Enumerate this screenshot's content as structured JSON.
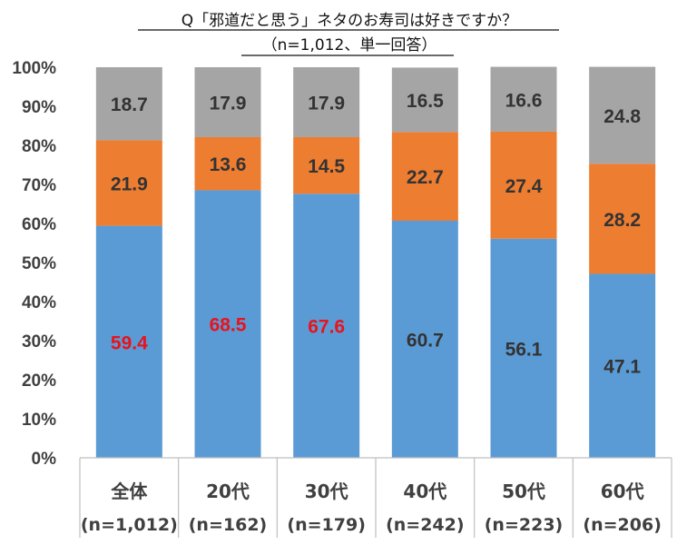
{
  "chart_data": {
    "type": "bar",
    "stacked": true,
    "title": "Q「邪道だと思う」ネタのお寿司は好きですか？",
    "subtitle": "（n=1,012、単一回答）",
    "categories": [
      "全体",
      "20代",
      "30代",
      "40代",
      "50代",
      "60代"
    ],
    "sample_sizes": [
      "(n=1,012)",
      "(n=162)",
      "(n=179)",
      "(n=242)",
      "(n=223)",
      "(n=206)"
    ],
    "series": [
      {
        "values": [
          59.4,
          68.5,
          67.6,
          60.7,
          56.1,
          47.1
        ],
        "color": "#5B9BD5",
        "label_colors": [
          "#E8131C",
          "#E8131C",
          "#E8131C",
          "#333333",
          "#333333",
          "#333333"
        ]
      },
      {
        "values": [
          21.9,
          13.6,
          14.5,
          22.7,
          27.4,
          28.2
        ],
        "color": "#ED7D31",
        "label_colors": [
          "#333333",
          "#333333",
          "#333333",
          "#333333",
          "#333333",
          "#333333"
        ]
      },
      {
        "values": [
          18.7,
          17.9,
          17.9,
          16.5,
          16.6,
          24.8
        ],
        "color": "#A5A5A5",
        "label_colors": [
          "#333333",
          "#333333",
          "#333333",
          "#333333",
          "#333333",
          "#333333"
        ]
      }
    ],
    "yticks": [
      "0%",
      "10%",
      "20%",
      "30%",
      "40%",
      "50%",
      "60%",
      "70%",
      "80%",
      "90%",
      "100%"
    ],
    "ylim": [
      0,
      100
    ],
    "grid": false,
    "legend": "none"
  }
}
